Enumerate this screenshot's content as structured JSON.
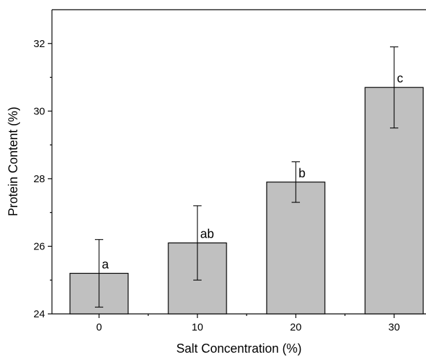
{
  "chart_data": {
    "type": "bar",
    "title": "",
    "xlabel": "Salt Concentration (%)",
    "ylabel": "Protein Content (%)",
    "categories": [
      "0",
      "10",
      "20",
      "30"
    ],
    "values": [
      25.2,
      26.1,
      27.9,
      30.7
    ],
    "error_upper": [
      26.2,
      27.2,
      28.5,
      31.9
    ],
    "error_lower": [
      24.2,
      25.0,
      27.3,
      29.5
    ],
    "significance_labels": [
      "a",
      "ab",
      "b",
      "c"
    ],
    "ylim": [
      24,
      33
    ],
    "y_ticks": [
      "24",
      "26",
      "28",
      "30",
      "32"
    ],
    "y_minor_ticks": [
      25,
      27,
      29,
      31
    ],
    "bar_color": "#c0c0c0",
    "grid": false
  }
}
